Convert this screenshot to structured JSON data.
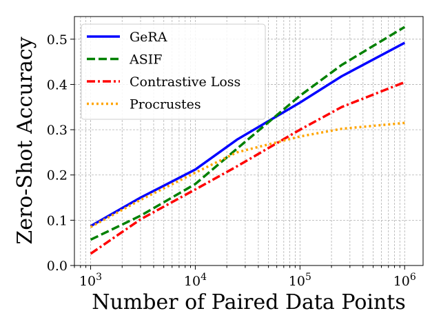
{
  "chart_data": {
    "type": "line",
    "title": "",
    "xlabel": "Number of Paired Data Points",
    "ylabel": "Zero-Shot Accuracy",
    "xscale": "log",
    "xlim": [
      700,
      1500000
    ],
    "ylim": [
      0.0,
      0.55
    ],
    "grid": true,
    "legend_position": "top-left",
    "x_ticks": [
      {
        "value": 1000,
        "base": "10",
        "exp": "3"
      },
      {
        "value": 10000,
        "base": "10",
        "exp": "4"
      },
      {
        "value": 100000,
        "base": "10",
        "exp": "5"
      },
      {
        "value": 1000000,
        "base": "10",
        "exp": "6"
      }
    ],
    "y_ticks": [
      {
        "value": 0.0,
        "label": "0.0"
      },
      {
        "value": 0.1,
        "label": "0.1"
      },
      {
        "value": 0.2,
        "label": "0.2"
      },
      {
        "value": 0.3,
        "label": "0.3"
      },
      {
        "value": 0.4,
        "label": "0.4"
      },
      {
        "value": 0.5,
        "label": "0.5"
      }
    ],
    "series": [
      {
        "name": "GeRA",
        "color": "#0000ff",
        "style": "solid",
        "x": [
          1000,
          3000,
          10000,
          25000,
          100000,
          250000,
          1000000
        ],
        "y": [
          0.087,
          0.15,
          0.212,
          0.278,
          0.36,
          0.418,
          0.492
        ]
      },
      {
        "name": "ASIF",
        "color": "#008000",
        "style": "dashed",
        "x": [
          1000,
          3000,
          10000,
          25000,
          100000,
          250000,
          1000000
        ],
        "y": [
          0.057,
          0.11,
          0.18,
          0.258,
          0.375,
          0.443,
          0.527
        ]
      },
      {
        "name": "Contrastive Loss",
        "color": "#ff0000",
        "style": "dashdot",
        "x": [
          1000,
          3000,
          10000,
          25000,
          100000,
          250000,
          1000000
        ],
        "y": [
          0.026,
          0.102,
          0.168,
          0.219,
          0.3,
          0.35,
          0.405
        ]
      },
      {
        "name": "Procrustes",
        "color": "#ffa500",
        "style": "dotted",
        "x": [
          1000,
          3000,
          10000,
          25000,
          100000,
          250000,
          1000000
        ],
        "y": [
          0.085,
          0.145,
          0.205,
          0.25,
          0.285,
          0.302,
          0.315
        ]
      }
    ]
  }
}
